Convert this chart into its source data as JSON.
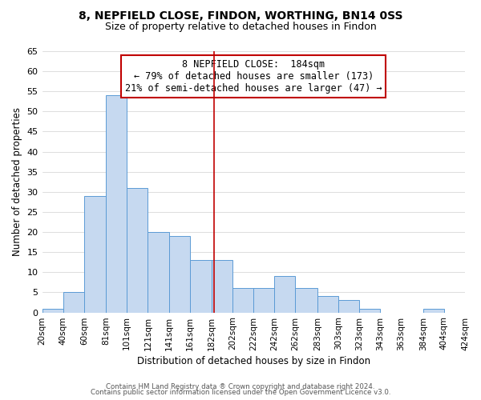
{
  "title": "8, NEPFIELD CLOSE, FINDON, WORTHING, BN14 0SS",
  "subtitle": "Size of property relative to detached houses in Findon",
  "xlabel": "Distribution of detached houses by size in Findon",
  "ylabel": "Number of detached properties",
  "bar_left_edges": [
    20,
    40,
    60,
    81,
    101,
    121,
    141,
    161,
    182,
    202,
    222,
    242,
    262,
    283,
    303,
    323,
    343,
    363,
    384,
    404
  ],
  "bar_widths": [
    20,
    20,
    21,
    20,
    20,
    20,
    20,
    21,
    20,
    20,
    20,
    20,
    21,
    20,
    20,
    20,
    20,
    21,
    20,
    20
  ],
  "bar_heights": [
    1,
    5,
    29,
    54,
    31,
    20,
    19,
    13,
    13,
    6,
    6,
    9,
    6,
    4,
    3,
    1,
    0,
    0,
    1,
    0
  ],
  "bar_color": "#c6d9f0",
  "bar_edgecolor": "#5b9bd5",
  "tick_labels": [
    "20sqm",
    "40sqm",
    "60sqm",
    "81sqm",
    "101sqm",
    "121sqm",
    "141sqm",
    "161sqm",
    "182sqm",
    "202sqm",
    "222sqm",
    "242sqm",
    "262sqm",
    "283sqm",
    "303sqm",
    "323sqm",
    "343sqm",
    "363sqm",
    "384sqm",
    "404sqm",
    "424sqm"
  ],
  "tick_positions": [
    20,
    40,
    60,
    81,
    101,
    121,
    141,
    161,
    182,
    202,
    222,
    242,
    262,
    283,
    303,
    323,
    343,
    363,
    384,
    404,
    424
  ],
  "vline_x": 184,
  "vline_color": "#c00000",
  "ylim": [
    0,
    65
  ],
  "yticks": [
    0,
    5,
    10,
    15,
    20,
    25,
    30,
    35,
    40,
    45,
    50,
    55,
    60,
    65
  ],
  "annotation_title": "8 NEPFIELD CLOSE:  184sqm",
  "annotation_line1": "← 79% of detached houses are smaller (173)",
  "annotation_line2": "21% of semi-detached houses are larger (47) →",
  "annotation_box_color": "#ffffff",
  "annotation_box_edgecolor": "#c00000",
  "footnote1": "Contains HM Land Registry data ® Crown copyright and database right 2024.",
  "footnote2": "Contains public sector information licensed under the Open Government Licence v3.0.",
  "background_color": "#ffffff",
  "grid_color": "#d0d0d0",
  "xlim_left": 20,
  "xlim_right": 424
}
